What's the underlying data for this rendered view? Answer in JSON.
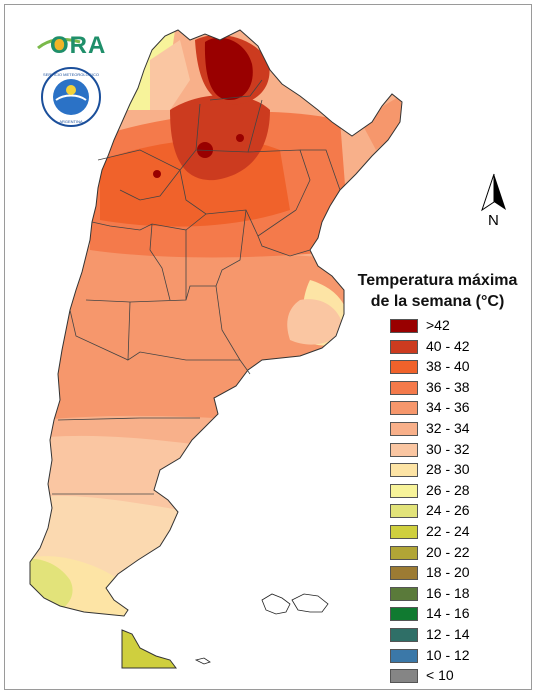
{
  "logos": {
    "ora_text": "ORA",
    "smn_seal": "SERVICIO METEOROLOGICO NACIONAL ARGENTINA"
  },
  "north_arrow": {
    "label": "N"
  },
  "legend": {
    "title_line1": "Temperatura máxima",
    "title_line2": "de la semana (°C)",
    "items": [
      {
        "label": ">42",
        "color": "#990000"
      },
      {
        "label": "40 - 42",
        "color": "#cc3b1f"
      },
      {
        "label": "38 - 40",
        "color": "#f0622b"
      },
      {
        "label": "36 - 38",
        "color": "#f47a4b"
      },
      {
        "label": "34 - 36",
        "color": "#f6976c"
      },
      {
        "label": "32 - 34",
        "color": "#f8b08a"
      },
      {
        "label": "30 - 32",
        "color": "#fac6a2"
      },
      {
        "label": "28 - 30",
        "color": "#fde4a5"
      },
      {
        "label": "26 - 28",
        "color": "#f7f39a"
      },
      {
        "label": "24 - 26",
        "color": "#e2e37a"
      },
      {
        "label": "22 - 24",
        "color": "#cfcf3e"
      },
      {
        "label": "20 - 22",
        "color": "#b1a536"
      },
      {
        "label": "18 - 20",
        "color": "#9c7b33"
      },
      {
        "label": "16 - 18",
        "color": "#5a7a3a"
      },
      {
        "label": "14 - 16",
        "color": "#107a30"
      },
      {
        "label": "12 - 14",
        "color": "#2f6f67"
      },
      {
        "label": "10 - 12",
        "color": "#3b78a8"
      },
      {
        "label": "< 10",
        "color": "#858585"
      }
    ]
  }
}
